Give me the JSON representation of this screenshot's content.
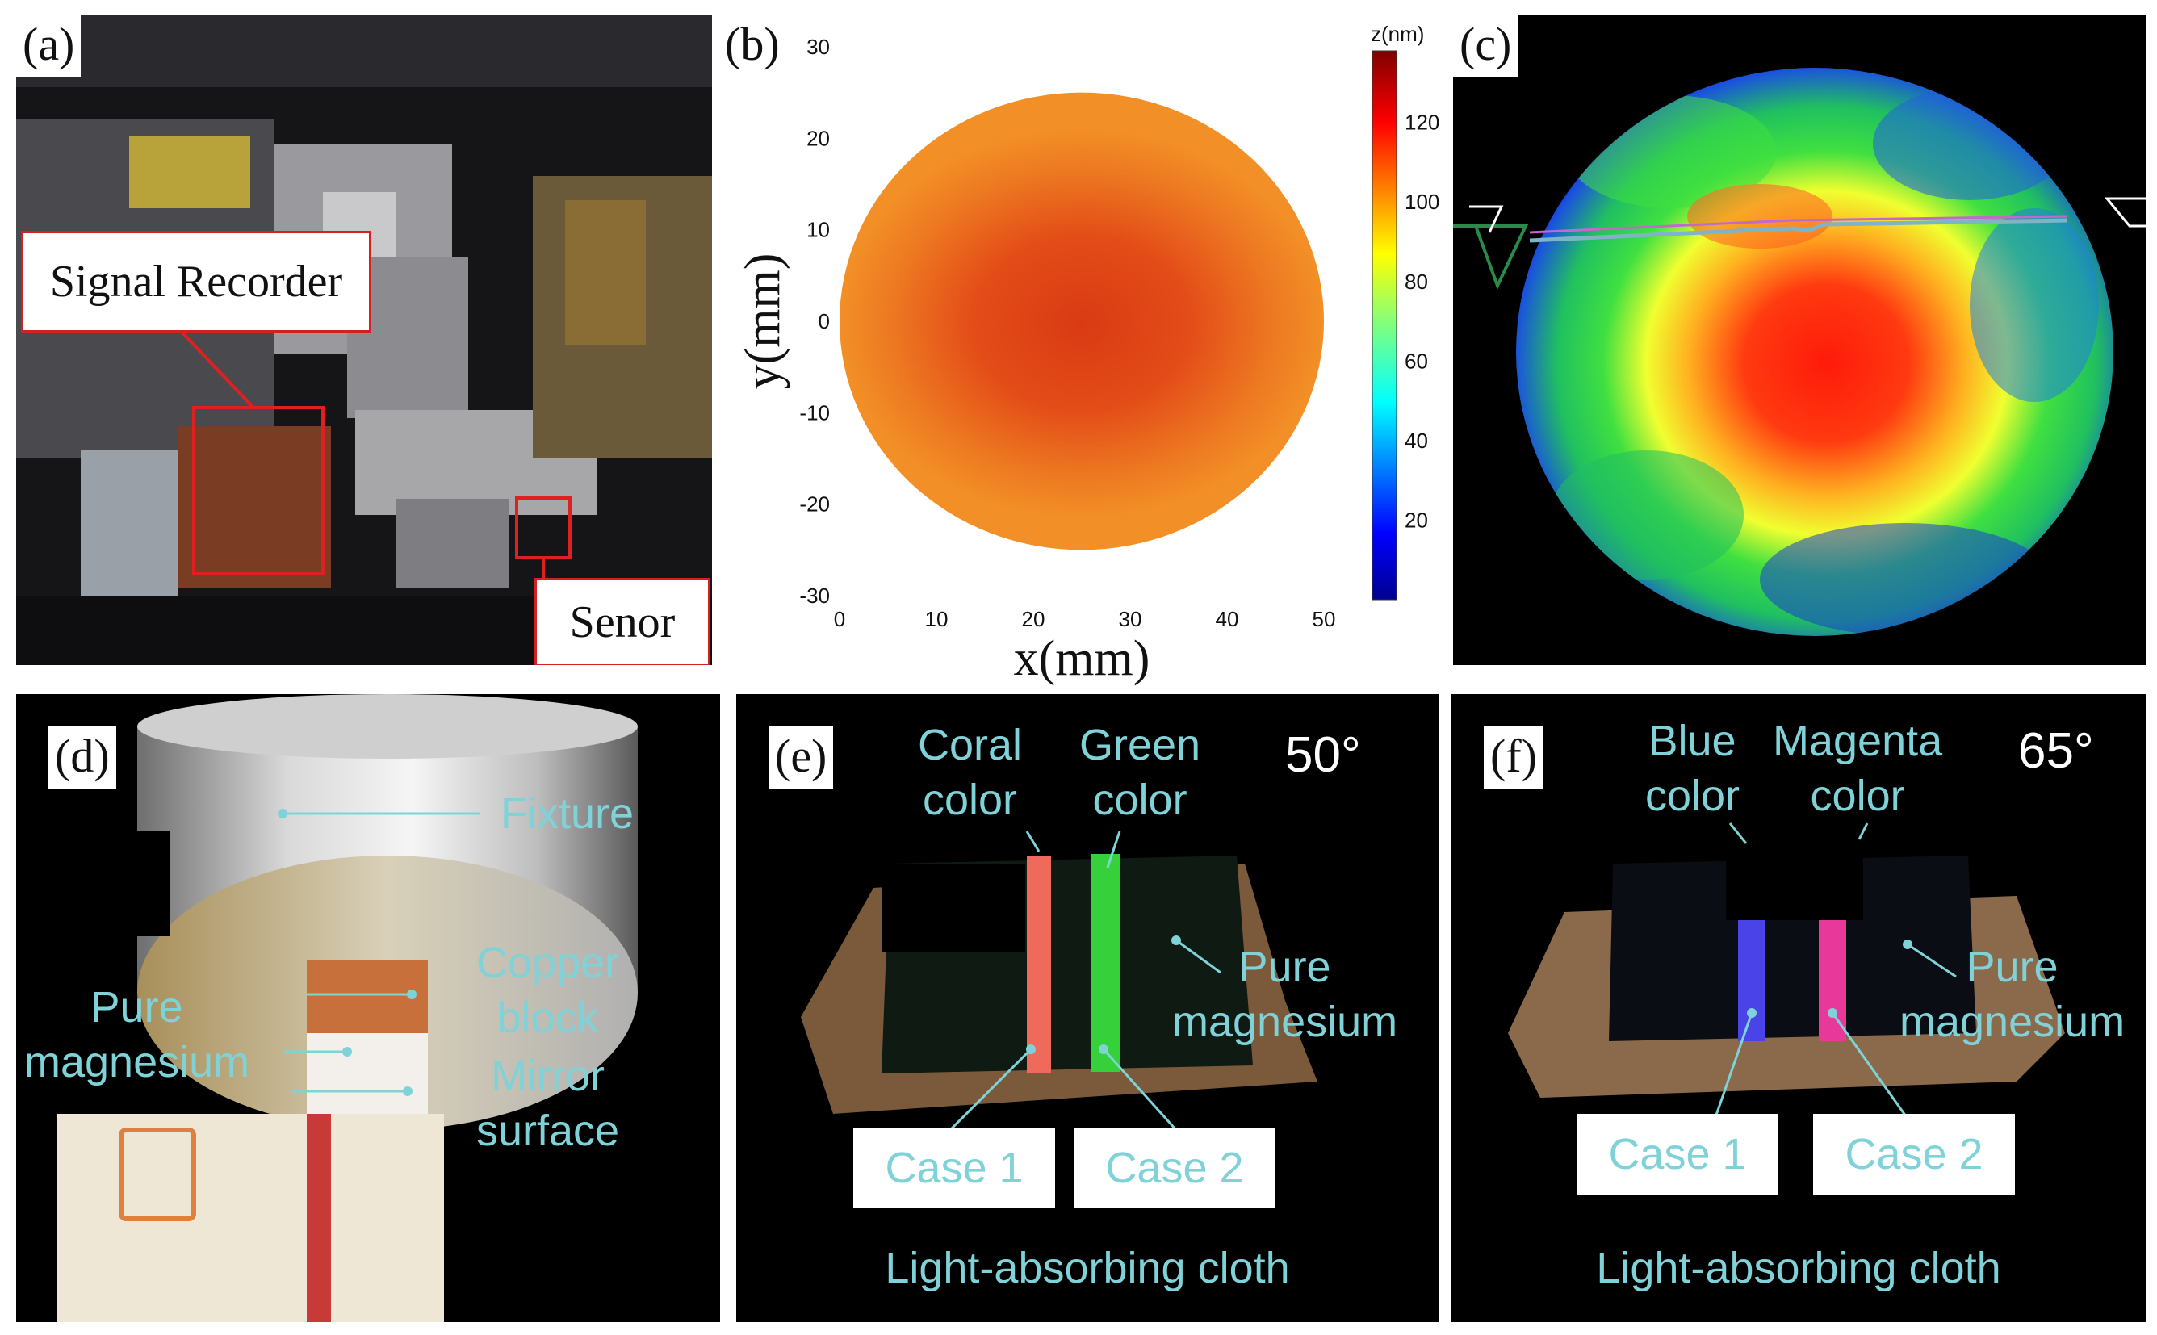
{
  "panels": {
    "a": {
      "label": "(a)",
      "signal_recorder": "Signal Recorder",
      "sensor": "Senor"
    },
    "b": {
      "label": "(b)"
    },
    "c": {
      "label": "(c)"
    },
    "d": {
      "label": "(d)",
      "fixture": "Fixture",
      "copper_block": [
        "Copper",
        "block"
      ],
      "pure_magnesium": [
        "Pure",
        "magnesium"
      ],
      "mirror_surface": [
        "Mirror",
        "surface"
      ]
    },
    "e": {
      "label": "(e)",
      "angle": "50°",
      "color1": [
        "Coral",
        "color"
      ],
      "color2": [
        "Green",
        "color"
      ],
      "pure_magnesium": [
        "Pure",
        "magnesium"
      ],
      "case1": "Case 1",
      "case2": "Case 2",
      "caption": "Light-absorbing cloth"
    },
    "f": {
      "label": "(f)",
      "angle": "65°",
      "color1": [
        "Blue",
        "color"
      ],
      "color2": [
        "Magenta",
        "color"
      ],
      "pure_magnesium": [
        "Pure",
        "magnesium"
      ],
      "case1": "Case 1",
      "case2": "Case 2",
      "caption": "Light-absorbing cloth"
    }
  },
  "chart_data": {
    "type": "heatmap",
    "title": "",
    "xlabel": "x(mm)",
    "ylabel": "y(mm)",
    "colorbar_label": "z(nm)",
    "xlim": [
      0,
      50
    ],
    "ylim": [
      -30,
      30
    ],
    "xticks": [
      0,
      10,
      20,
      30,
      40,
      50
    ],
    "yticks": [
      30,
      20,
      10,
      0,
      -10,
      -20,
      -30
    ],
    "colorbar_ticks": [
      120,
      100,
      80,
      60,
      40,
      20
    ],
    "colorbar_range": [
      0,
      138
    ],
    "surface": {
      "shape": "disk",
      "center_x": 25,
      "center_y": 0,
      "radius": 25,
      "z_center_nm": 112,
      "z_edge_nm": 100
    },
    "colors": {
      "high": "#8b0000",
      "mid": "#ffd400",
      "low": "#00008f"
    }
  }
}
